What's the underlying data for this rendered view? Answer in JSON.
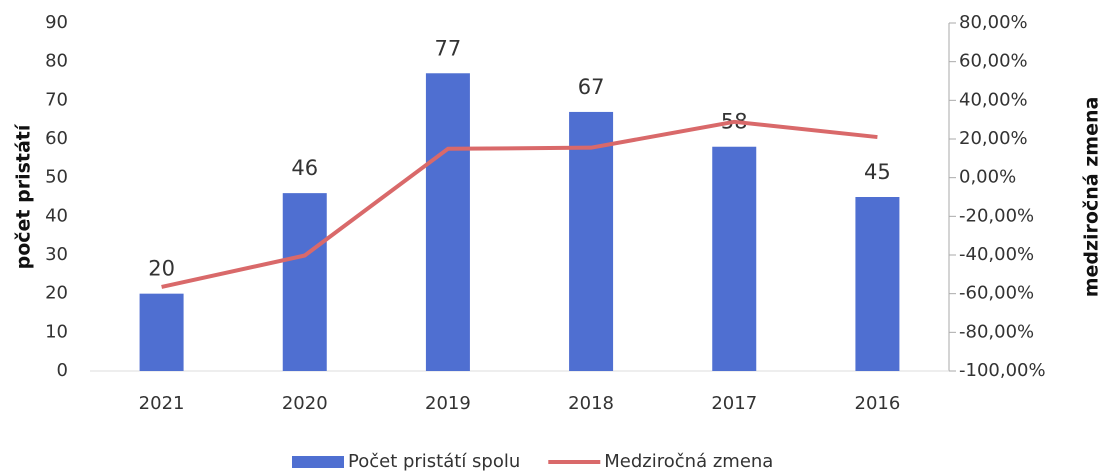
{
  "chart_data": {
    "type": "bar_line",
    "categories": [
      "2021",
      "2020",
      "2019",
      "2018",
      "2017",
      "2016"
    ],
    "series": [
      {
        "name": "Počet pristátí spolu",
        "type": "bar",
        "color": "#4f6fd1",
        "values": [
          20,
          46,
          77,
          67,
          58,
          45
        ]
      },
      {
        "name": "Medziročná zmena",
        "type": "line",
        "axis": "y2",
        "color": "#d9696a",
        "values": [
          -56.52,
          -40.26,
          14.93,
          15.52,
          28.89,
          21
        ]
      }
    ],
    "ylabel": "počet pristátí",
    "y2label": "medziročná zmena",
    "ylim": [
      0,
      90
    ],
    "yticks": [
      0,
      10,
      20,
      30,
      40,
      50,
      60,
      70,
      80,
      90
    ],
    "y2lim": [
      -100,
      80
    ],
    "y2ticks": [
      {
        "value": 80,
        "label": "80,00%"
      },
      {
        "value": 60,
        "label": "60,00%"
      },
      {
        "value": 40,
        "label": "40,00%"
      },
      {
        "value": 20,
        "label": "20,00%"
      },
      {
        "value": 0,
        "label": "0,00%"
      },
      {
        "value": -20,
        "label": "-20,00%"
      },
      {
        "value": -40,
        "label": "-40,00%"
      },
      {
        "value": -60,
        "label": "-60,00%"
      },
      {
        "value": -80,
        "label": "-80,00%"
      },
      {
        "value": -100,
        "label": "-100,00%"
      }
    ],
    "legend": "bottom"
  }
}
